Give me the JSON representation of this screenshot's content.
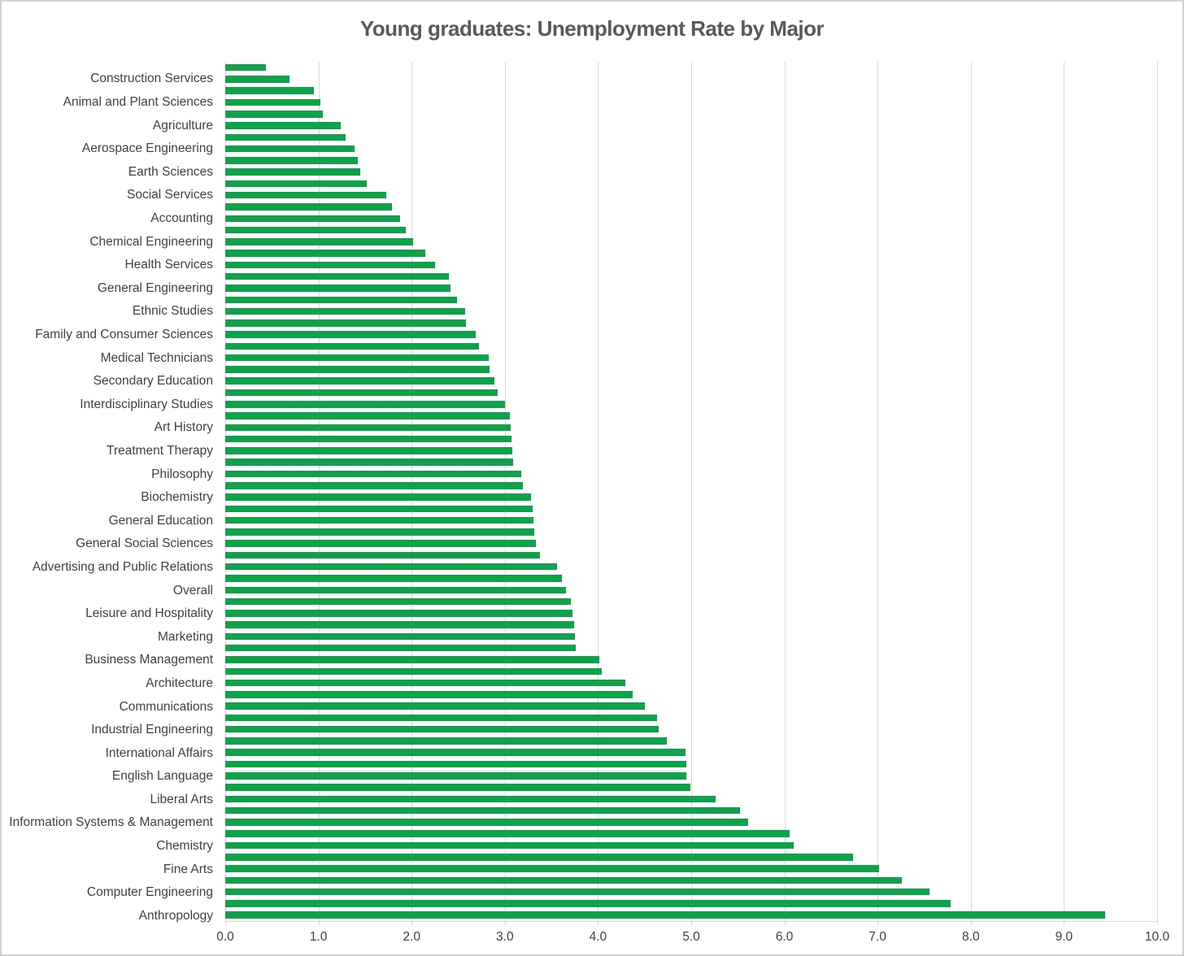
{
  "chart_data": {
    "type": "bar",
    "orientation": "horizontal",
    "title": "Young graduates: Unemployment Rate by Major",
    "xlabel": "",
    "ylabel": "",
    "xlim": [
      0,
      10
    ],
    "x_tick_labels": [
      "0.0",
      "1.0",
      "2.0",
      "3.0",
      "4.0",
      "5.0",
      "6.0",
      "7.0",
      "8.0",
      "9.0",
      "10.0"
    ],
    "grid": true,
    "legend": false,
    "layout_hint": "74 bars sorted ascending top-to-bottom; category axis shows a label only for every second bar",
    "colors": {
      "bar": "#0fa24b",
      "title": "#595959",
      "labels": "#404040",
      "gridline": "#d9d9d9",
      "frame_border": "#d2d2d2",
      "background": "#ffffff"
    },
    "rows": [
      {
        "label": "",
        "value": 0.44
      },
      {
        "label": "Construction Services",
        "value": 0.69
      },
      {
        "label": "",
        "value": 0.95
      },
      {
        "label": "Animal and Plant Sciences",
        "value": 1.02
      },
      {
        "label": "",
        "value": 1.05
      },
      {
        "label": "Agriculture",
        "value": 1.24
      },
      {
        "label": "",
        "value": 1.29
      },
      {
        "label": "Aerospace Engineering",
        "value": 1.39
      },
      {
        "label": "",
        "value": 1.42
      },
      {
        "label": "Earth Sciences",
        "value": 1.45
      },
      {
        "label": "",
        "value": 1.52
      },
      {
        "label": "Social Services",
        "value": 1.73
      },
      {
        "label": "",
        "value": 1.79
      },
      {
        "label": "Accounting",
        "value": 1.88
      },
      {
        "label": "",
        "value": 1.94
      },
      {
        "label": "Chemical Engineering",
        "value": 2.02
      },
      {
        "label": "",
        "value": 2.15
      },
      {
        "label": "Health Services",
        "value": 2.25
      },
      {
        "label": "",
        "value": 2.4
      },
      {
        "label": "General Engineering",
        "value": 2.42
      },
      {
        "label": "",
        "value": 2.49
      },
      {
        "label": "Ethnic Studies",
        "value": 2.57
      },
      {
        "label": "",
        "value": 2.58
      },
      {
        "label": "Family and Consumer Sciences",
        "value": 2.69
      },
      {
        "label": "",
        "value": 2.72
      },
      {
        "label": "Medical Technicians",
        "value": 2.83
      },
      {
        "label": "",
        "value": 2.84
      },
      {
        "label": "Secondary Education",
        "value": 2.89
      },
      {
        "label": "",
        "value": 2.92
      },
      {
        "label": "Interdisciplinary Studies",
        "value": 3.0
      },
      {
        "label": "",
        "value": 3.05
      },
      {
        "label": "Art History",
        "value": 3.06
      },
      {
        "label": "",
        "value": 3.07
      },
      {
        "label": "Treatment Therapy",
        "value": 3.08
      },
      {
        "label": "",
        "value": 3.09
      },
      {
        "label": "Philosophy",
        "value": 3.18
      },
      {
        "label": "",
        "value": 3.19
      },
      {
        "label": "Biochemistry",
        "value": 3.28
      },
      {
        "label": "",
        "value": 3.3
      },
      {
        "label": "General Education",
        "value": 3.31
      },
      {
        "label": "",
        "value": 3.32
      },
      {
        "label": "General Social Sciences",
        "value": 3.33
      },
      {
        "label": "",
        "value": 3.38
      },
      {
        "label": "Advertising and Public Relations",
        "value": 3.56
      },
      {
        "label": "",
        "value": 3.61
      },
      {
        "label": "Overall",
        "value": 3.66
      },
      {
        "label": "",
        "value": 3.71
      },
      {
        "label": "Leisure and Hospitality",
        "value": 3.73
      },
      {
        "label": "",
        "value": 3.74
      },
      {
        "label": "Marketing",
        "value": 3.75
      },
      {
        "label": "",
        "value": 3.76
      },
      {
        "label": "Business Management",
        "value": 4.01
      },
      {
        "label": "",
        "value": 4.04
      },
      {
        "label": "Architecture",
        "value": 4.29
      },
      {
        "label": "",
        "value": 4.37
      },
      {
        "label": "Communications",
        "value": 4.5
      },
      {
        "label": "",
        "value": 4.63
      },
      {
        "label": "Industrial Engineering",
        "value": 4.65
      },
      {
        "label": "",
        "value": 4.74
      },
      {
        "label": "International Affairs",
        "value": 4.94
      },
      {
        "label": "",
        "value": 4.95
      },
      {
        "label": "English Language",
        "value": 4.95
      },
      {
        "label": "",
        "value": 4.99
      },
      {
        "label": "Liberal Arts",
        "value": 5.26
      },
      {
        "label": "",
        "value": 5.52
      },
      {
        "label": "Information Systems & Management",
        "value": 5.61
      },
      {
        "label": "",
        "value": 6.06
      },
      {
        "label": "Chemistry",
        "value": 6.1
      },
      {
        "label": "",
        "value": 6.74
      },
      {
        "label": "Fine Arts",
        "value": 7.02
      },
      {
        "label": "",
        "value": 7.26
      },
      {
        "label": "Computer Engineering",
        "value": 7.56
      },
      {
        "label": "",
        "value": 7.78
      },
      {
        "label": "Anthropology",
        "value": 9.44
      }
    ]
  }
}
